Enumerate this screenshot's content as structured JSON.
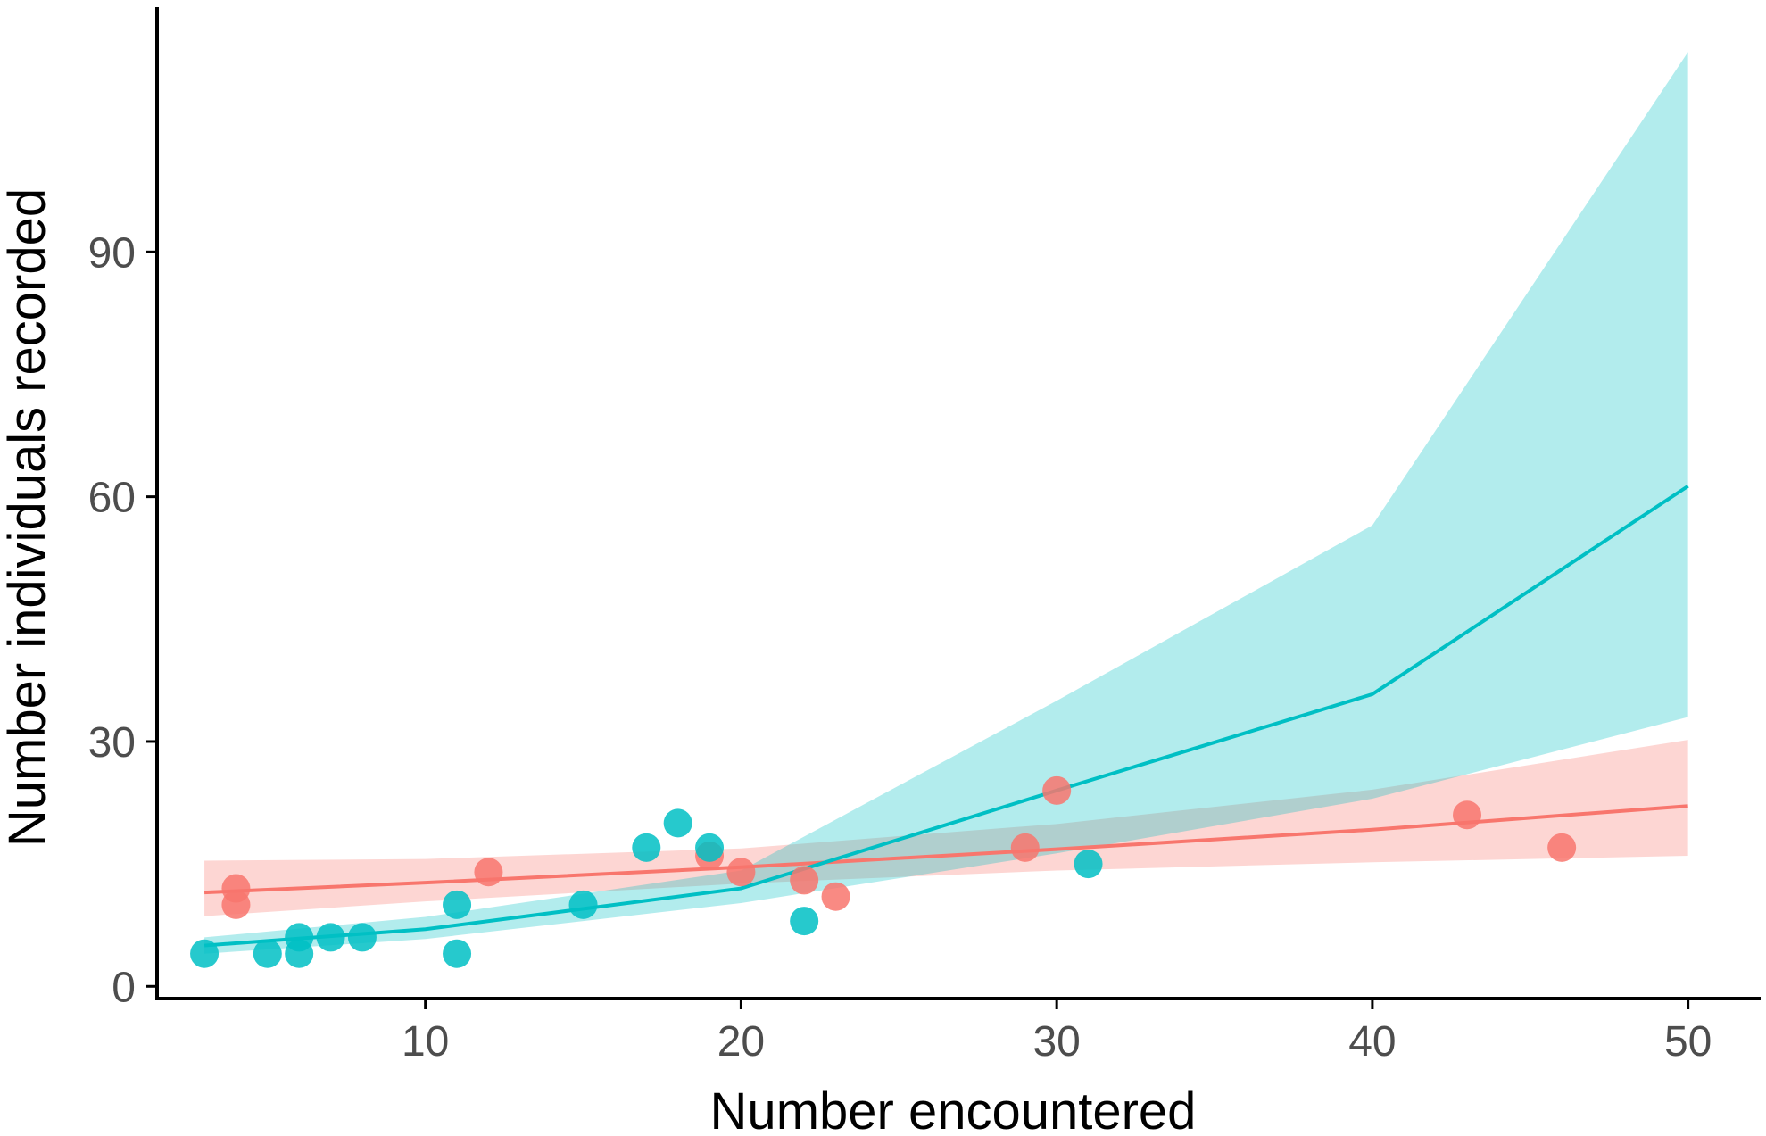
{
  "chart_data": {
    "type": "scatter",
    "title": "",
    "xlabel": "Number encountered",
    "ylabel": "Number individuals recorded",
    "xlim": [
      1.5,
      52.3
    ],
    "ylim": [
      -1.5,
      120
    ],
    "x_ticks": [
      10,
      20,
      30,
      40,
      50
    ],
    "y_ticks": [
      0,
      30,
      60,
      90
    ],
    "grid": false,
    "legend": "none",
    "series": [
      {
        "color": "#F8766D",
        "band_color": "#F8766D",
        "points": [
          {
            "x": 4,
            "y": 12
          },
          {
            "x": 4,
            "y": 10
          },
          {
            "x": 12,
            "y": 14
          },
          {
            "x": 19,
            "y": 16
          },
          {
            "x": 20,
            "y": 14
          },
          {
            "x": 22,
            "y": 13
          },
          {
            "x": 23,
            "y": 11
          },
          {
            "x": 29,
            "y": 17
          },
          {
            "x": 30,
            "y": 24
          },
          {
            "x": 43,
            "y": 21
          },
          {
            "x": 46,
            "y": 17
          }
        ],
        "fit_x": [
          3,
          10,
          20,
          30,
          40,
          50
        ],
        "fit": [
          11.5,
          12.7,
          14.6,
          16.8,
          19.2,
          22.1
        ],
        "lower": [
          8.6,
          10.4,
          12.6,
          14.2,
          15.2,
          16.0
        ],
        "upper": [
          15.4,
          15.6,
          16.9,
          19.9,
          24.1,
          30.2
        ]
      },
      {
        "color": "#00BFC4",
        "band_color": "#00BFC4",
        "points": [
          {
            "x": 3,
            "y": 4
          },
          {
            "x": 5,
            "y": 4
          },
          {
            "x": 6,
            "y": 6
          },
          {
            "x": 6,
            "y": 4
          },
          {
            "x": 7,
            "y": 6
          },
          {
            "x": 8,
            "y": 6
          },
          {
            "x": 11,
            "y": 10
          },
          {
            "x": 11,
            "y": 4
          },
          {
            "x": 15,
            "y": 10
          },
          {
            "x": 17,
            "y": 17
          },
          {
            "x": 18,
            "y": 20
          },
          {
            "x": 19,
            "y": 17
          },
          {
            "x": 22,
            "y": 8
          },
          {
            "x": 31,
            "y": 15
          }
        ],
        "fit_x": [
          3,
          10,
          20,
          30,
          40,
          50
        ],
        "fit": [
          5.0,
          7.0,
          12.0,
          24.0,
          35.8,
          61.3
        ],
        "lower": [
          4.0,
          5.8,
          10.2,
          16.3,
          23.0,
          33.0
        ],
        "upper": [
          6.0,
          8.5,
          14.2,
          35.0,
          56.5,
          114.5
        ]
      }
    ]
  }
}
